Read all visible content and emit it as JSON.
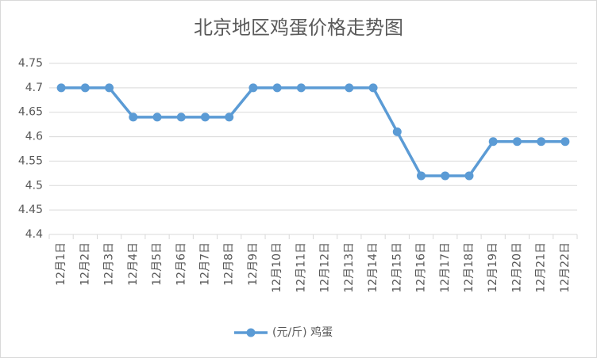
{
  "chart_data": {
    "type": "line",
    "title": "北京地区鸡蛋价格走势图",
    "categories": [
      "12月1日",
      "12月2日",
      "12月3日",
      "12月4日",
      "12月5日",
      "12月6日",
      "12月7日",
      "12月8日",
      "12月9日",
      "12月10日",
      "12月11日",
      "12月12日",
      "12月13日",
      "12月14日",
      "12月15日",
      "12月16日",
      "12月17日",
      "12月18日",
      "12月19日",
      "12月20日",
      "12月21日",
      "12月22日"
    ],
    "series": [
      {
        "name": "(元/斤) 鸡蛋",
        "color": "#5b9bd5",
        "values": [
          4.7,
          4.7,
          4.7,
          4.64,
          4.64,
          4.64,
          4.64,
          4.64,
          4.7,
          4.7,
          4.7,
          null,
          4.7,
          4.7,
          4.61,
          4.52,
          4.52,
          4.52,
          4.59,
          4.59,
          4.59,
          4.59
        ]
      }
    ],
    "ylim": [
      4.4,
      4.75
    ],
    "yticks": [
      4.4,
      4.45,
      4.5,
      4.55,
      4.6,
      4.65,
      4.7,
      4.75
    ],
    "grid": true,
    "legend": "bottom"
  }
}
